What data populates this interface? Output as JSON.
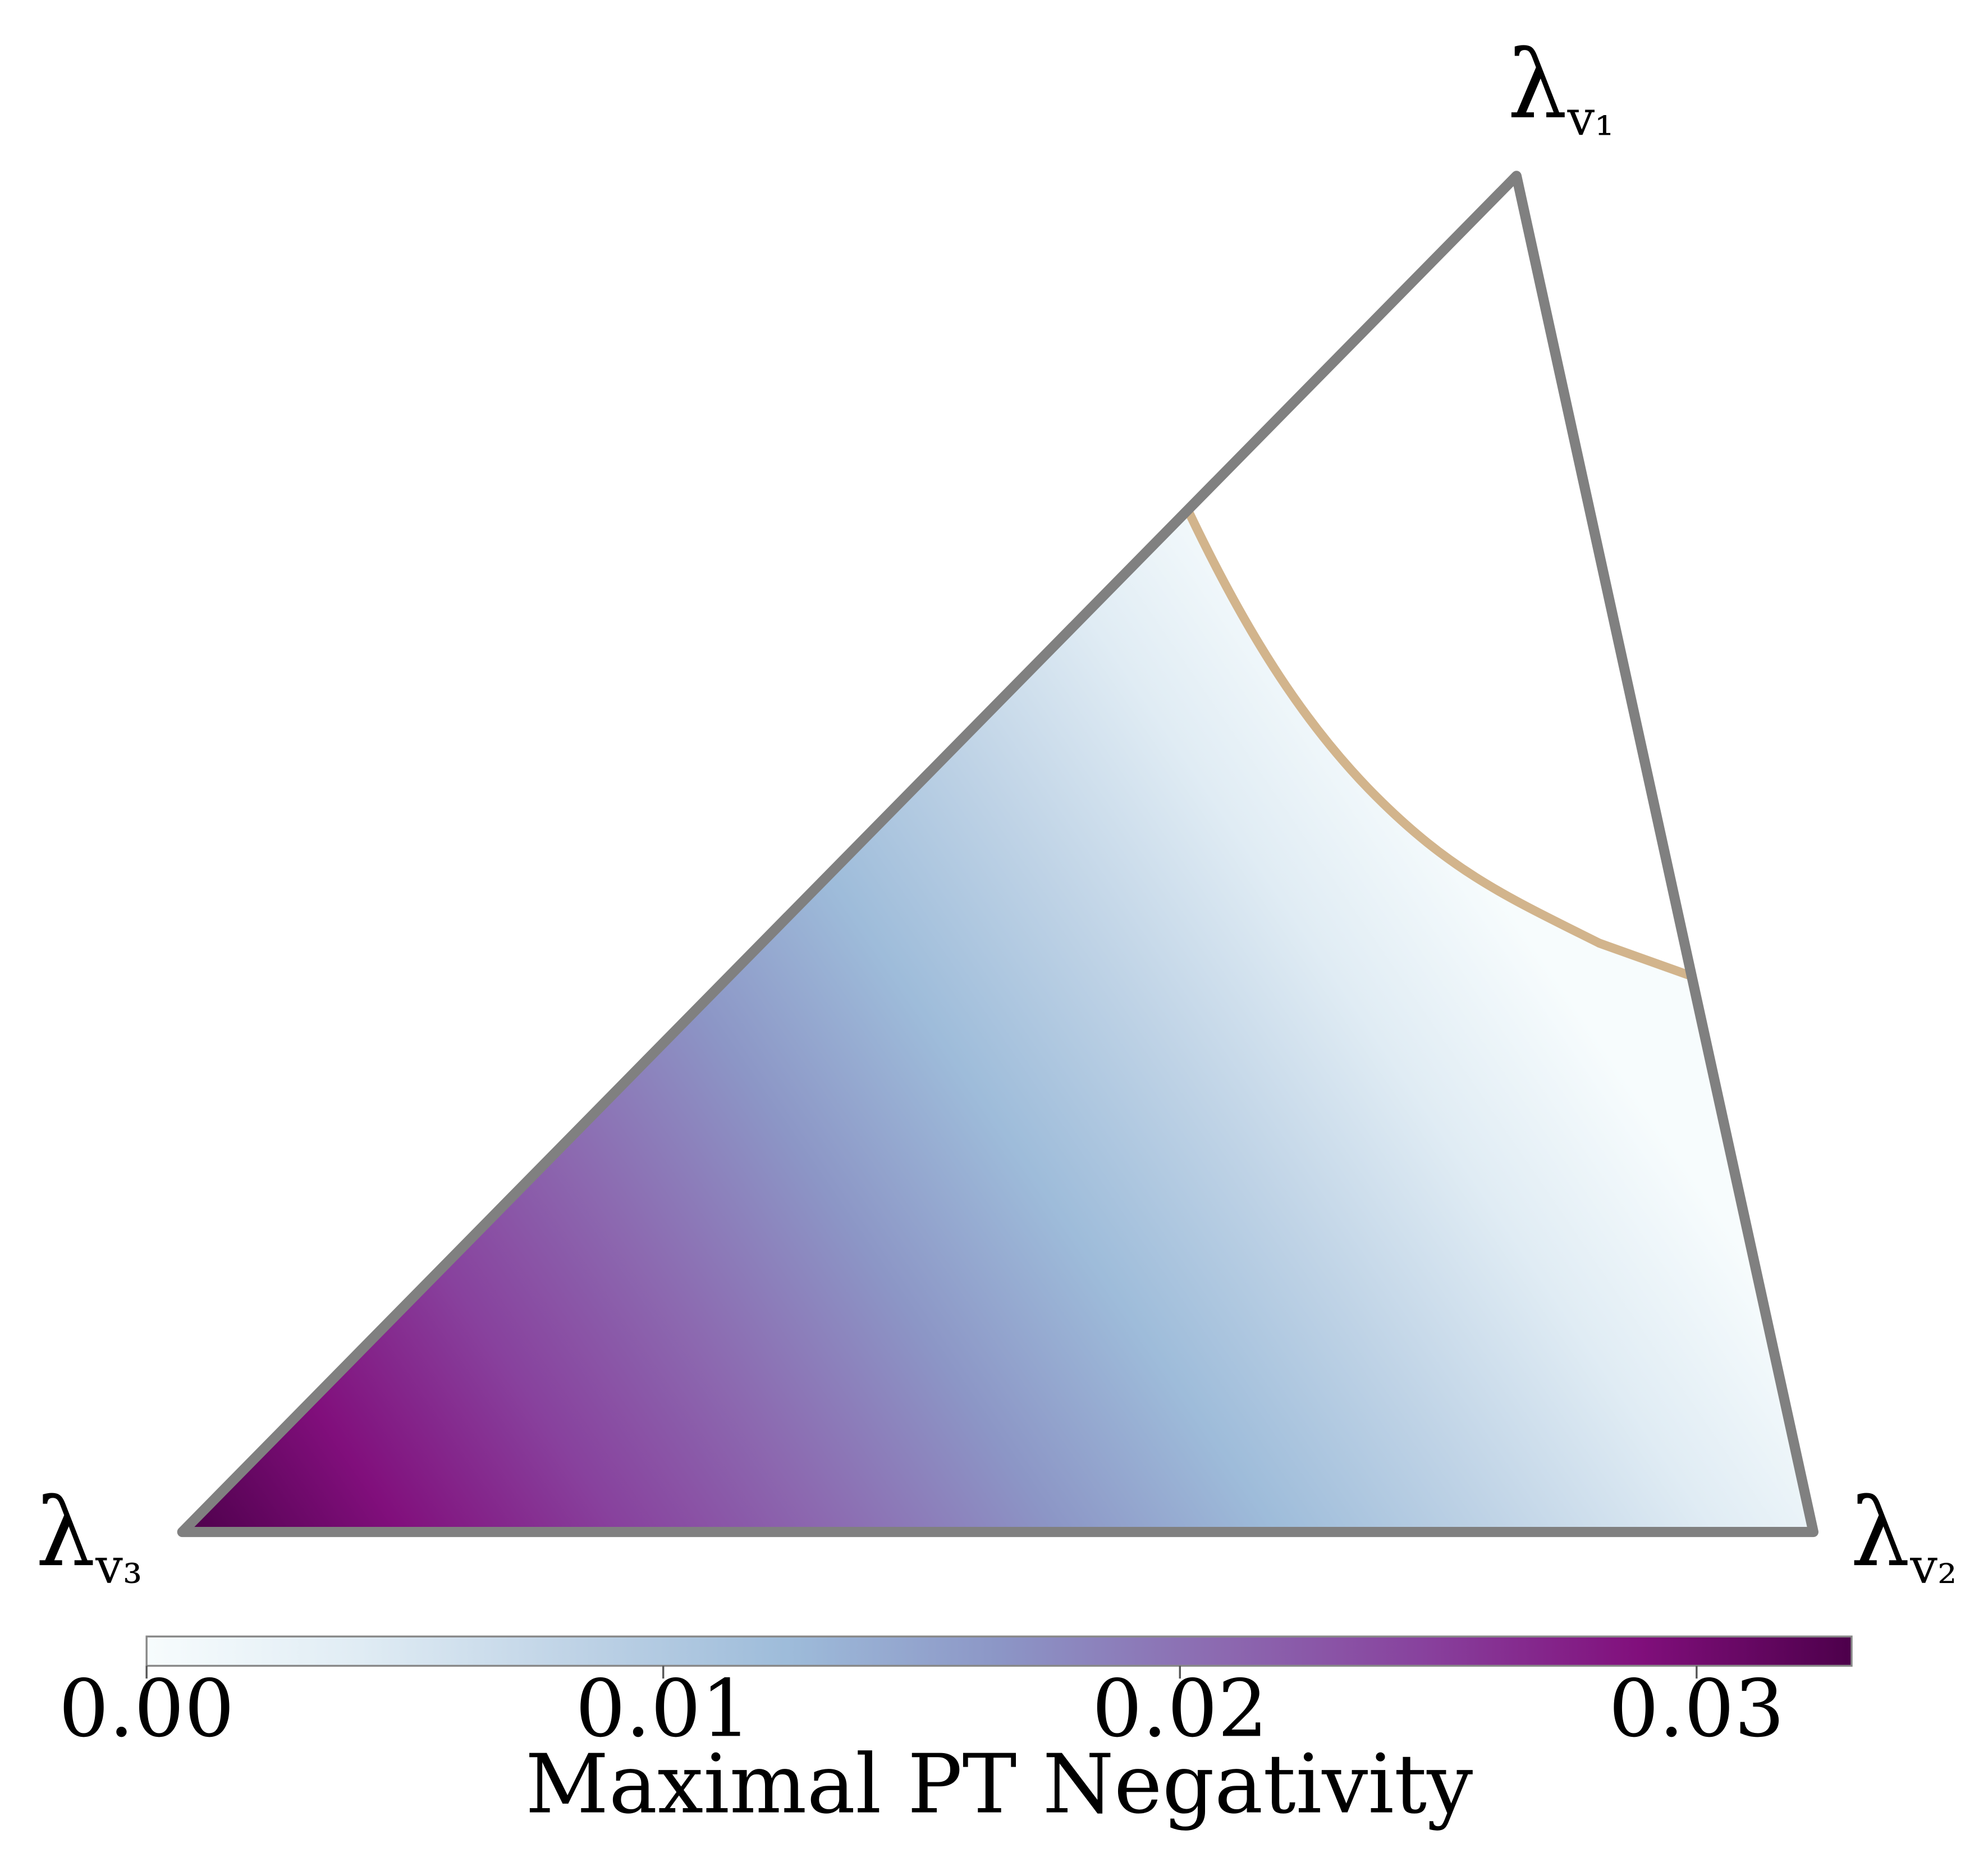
{
  "chart_data": {
    "type": "ternary-heatmap",
    "vertices": [
      {
        "symbol": "λ",
        "subscript": "v₁"
      },
      {
        "symbol": "λ",
        "subscript": "v₂"
      },
      {
        "symbol": "λ",
        "subscript": "v₃"
      }
    ],
    "edge_color": "#808080",
    "boundary_color": "#d2b48c",
    "colorbar": {
      "label": "Maximal PT Negativity",
      "clim": [
        0,
        0.033
      ],
      "ticks": [
        {
          "value": 0,
          "label": "0.00"
        },
        {
          "value": 0.01,
          "label": "0.01"
        },
        {
          "value": 0.02,
          "label": "0.02"
        },
        {
          "value": 0.03,
          "label": "0.03"
        }
      ],
      "colormap": [
        "#f7fcfd",
        "#e0ecf4",
        "#bfd3e6",
        "#9ebcda",
        "#8c96c6",
        "#8c6bb1",
        "#88419d",
        "#810f7c",
        "#4d004b"
      ]
    }
  }
}
